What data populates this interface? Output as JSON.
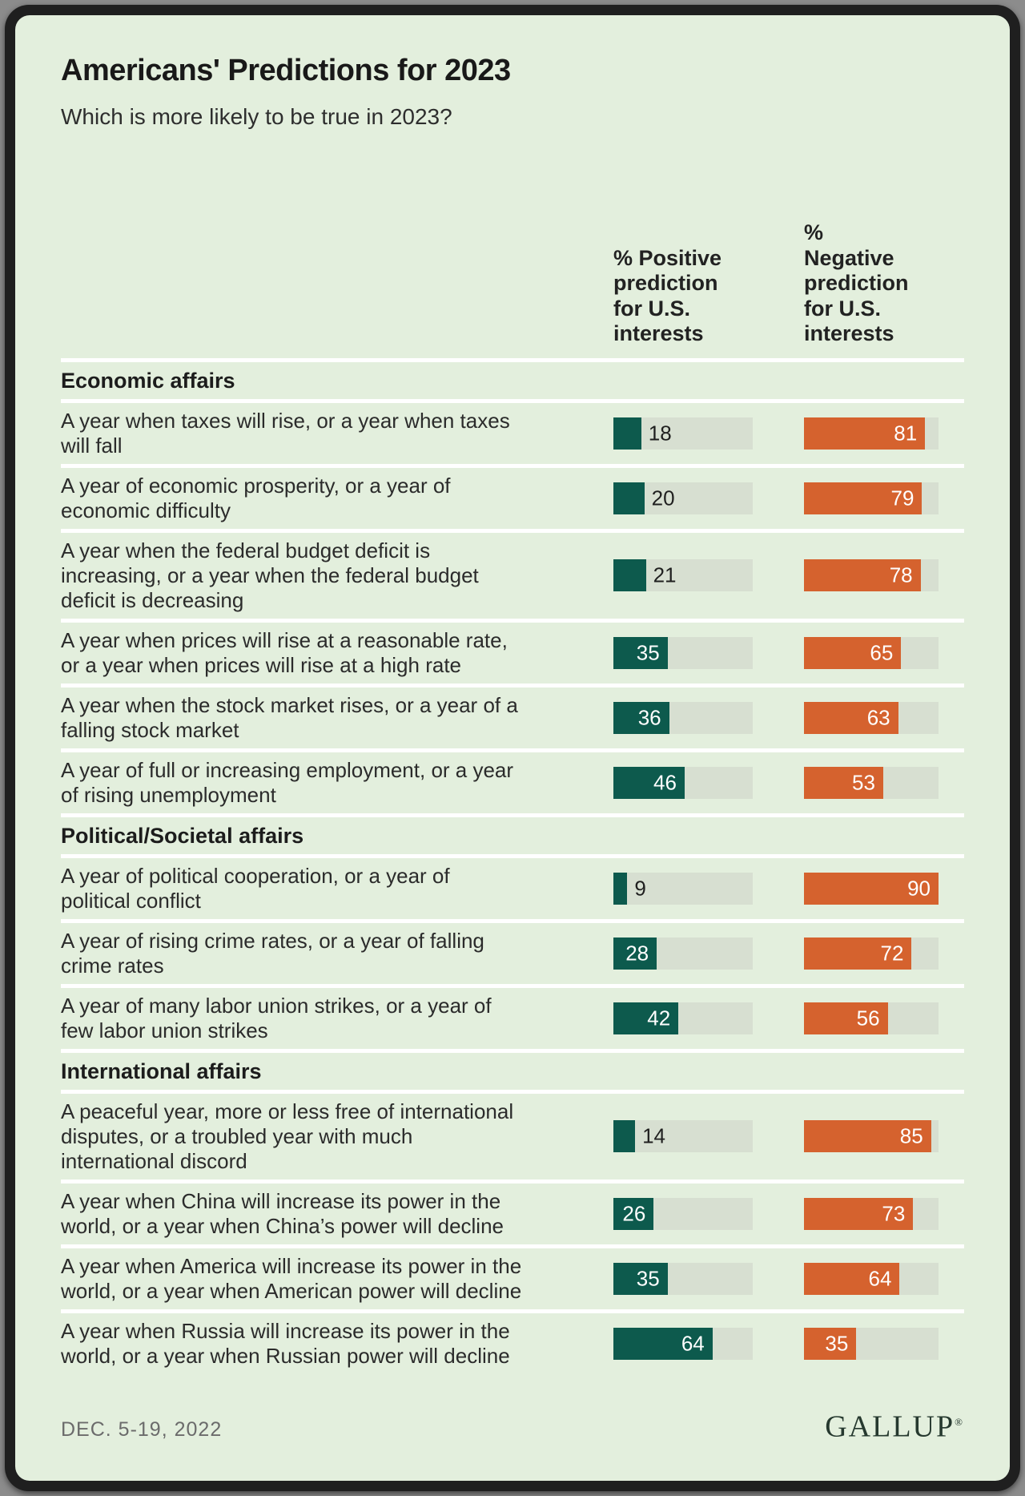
{
  "header": {
    "title": "Americans' Predictions for 2023",
    "subtitle": "Which is more likely to be true in 2023?"
  },
  "columns": {
    "positive": "% Positive\nprediction\nfor U.S.\ninterests",
    "negative": "%\nNegative\nprediction\nfor U.S.\ninterests"
  },
  "colors": {
    "positive_bar": "#0d5a4d",
    "negative_bar": "#d5622e",
    "bar_track": "#d7dfd1",
    "background": "#e3efdd",
    "frame": "#1f1f1f"
  },
  "chart_data": {
    "type": "bar",
    "orientation": "horizontal",
    "value_scale_max": 90,
    "series_names": [
      "% Positive prediction for U.S. interests",
      "% Negative prediction for U.S. interests"
    ],
    "sections": [
      {
        "title": "Economic affairs",
        "rows": [
          {
            "label": "A year when taxes will rise, or a year when taxes\nwill fall",
            "positive": 18,
            "negative": 81
          },
          {
            "label": "A year of economic prosperity, or a year of\neconomic difficulty",
            "positive": 20,
            "negative": 79
          },
          {
            "label": "A year when the federal budget deficit is\nincreasing, or a year when the federal budget\ndeficit is decreasing",
            "positive": 21,
            "negative": 78
          },
          {
            "label": "A year when prices will rise at a reasonable rate,\nor a year when prices will rise at a high rate",
            "positive": 35,
            "negative": 65
          },
          {
            "label": "A year when the stock market rises, or a year of a\nfalling stock market",
            "positive": 36,
            "negative": 63
          },
          {
            "label": "A year of full or increasing employment, or a year\nof rising unemployment",
            "positive": 46,
            "negative": 53
          }
        ]
      },
      {
        "title": "Political/Societal affairs",
        "rows": [
          {
            "label": "A year of political cooperation, or a year of\npolitical conflict",
            "positive": 9,
            "negative": 90
          },
          {
            "label": "A year of rising crime rates, or a year of falling\ncrime rates",
            "positive": 28,
            "negative": 72
          },
          {
            "label": "A year of many labor union strikes, or a year of\nfew labor union strikes",
            "positive": 42,
            "negative": 56
          }
        ]
      },
      {
        "title": "International affairs",
        "rows": [
          {
            "label": "A peaceful year, more or less free of international\ndisputes, or a troubled year with much\ninternational discord",
            "positive": 14,
            "negative": 85
          },
          {
            "label": "A year when China will increase its power in the\nworld, or a year when China’s power will decline",
            "positive": 26,
            "negative": 73
          },
          {
            "label": "A year when America will increase its power in the\nworld, or a year when American power will decline",
            "positive": 35,
            "negative": 64
          },
          {
            "label": "A year when Russia will increase its power in the\nworld, or a year when Russian power will decline",
            "positive": 64,
            "negative": 35
          }
        ]
      }
    ]
  },
  "footer": {
    "date": "DEC. 5-19, 2022",
    "brand": "GALLUP",
    "registered_mark": "®"
  }
}
